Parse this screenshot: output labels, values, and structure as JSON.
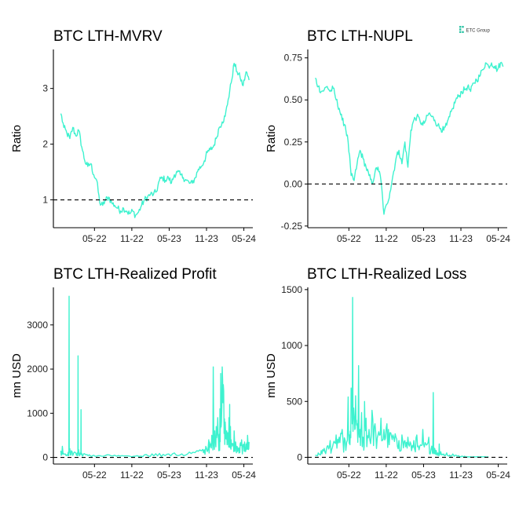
{
  "logo": {
    "text": "ETC Group",
    "color": "#2ec4a6"
  },
  "colors": {
    "line": "#3ef2cf",
    "reference": "#000000",
    "axis": "#000000"
  },
  "chart_data": [
    {
      "type": "line",
      "title": "BTC LTH-MVRV",
      "ylabel": "Ratio",
      "xlabel": "",
      "ylim": [
        0.5,
        3.7
      ],
      "yticks": [
        1,
        2,
        3
      ],
      "ytick_labels": [
        "1",
        "2",
        "3"
      ],
      "xlim": [
        2021.78,
        2024.45
      ],
      "xticks": [
        2022.33,
        2022.83,
        2023.33,
        2023.83,
        2024.33
      ],
      "xtick_labels": [
        "05-22",
        "11-22",
        "05-23",
        "11-23",
        "05-24"
      ],
      "reference_line": 1,
      "noise": 0.06,
      "x": [
        2021.88,
        2021.92,
        2021.96,
        2022.0,
        2022.04,
        2022.08,
        2022.12,
        2022.16,
        2022.2,
        2022.24,
        2022.28,
        2022.32,
        2022.36,
        2022.4,
        2022.44,
        2022.48,
        2022.52,
        2022.56,
        2022.6,
        2022.64,
        2022.68,
        2022.72,
        2022.76,
        2022.8,
        2022.84,
        2022.88,
        2022.92,
        2022.96,
        2023.0,
        2023.04,
        2023.08,
        2023.12,
        2023.16,
        2023.2,
        2023.24,
        2023.28,
        2023.32,
        2023.36,
        2023.4,
        2023.44,
        2023.48,
        2023.52,
        2023.56,
        2023.6,
        2023.64,
        2023.68,
        2023.72,
        2023.76,
        2023.8,
        2023.84,
        2023.88,
        2023.92,
        2023.96,
        2024.0,
        2024.04,
        2024.08,
        2024.12,
        2024.16,
        2024.2,
        2024.24,
        2024.28,
        2024.32,
        2024.36,
        2024.4
      ],
      "y": [
        2.55,
        2.3,
        2.2,
        2.1,
        2.3,
        2.15,
        2.25,
        1.95,
        1.7,
        1.6,
        1.65,
        1.45,
        1.35,
        0.95,
        0.9,
        1.0,
        1.05,
        0.95,
        0.9,
        0.85,
        0.8,
        0.85,
        0.8,
        0.75,
        0.8,
        0.72,
        0.78,
        0.9,
        1.0,
        1.05,
        1.1,
        1.1,
        1.15,
        1.35,
        1.4,
        1.35,
        1.4,
        1.3,
        1.45,
        1.5,
        1.45,
        1.4,
        1.35,
        1.3,
        1.3,
        1.4,
        1.55,
        1.6,
        1.7,
        1.85,
        1.9,
        1.95,
        2.1,
        2.3,
        2.4,
        2.5,
        2.8,
        3.1,
        3.45,
        3.3,
        3.2,
        3.05,
        3.3,
        3.15
      ]
    },
    {
      "type": "line",
      "title": "BTC LTH-NUPL",
      "ylabel": "Ratio",
      "xlabel": "",
      "ylim": [
        -0.26,
        0.8
      ],
      "yticks": [
        -0.25,
        0.0,
        0.25,
        0.5,
        0.75
      ],
      "ytick_labels": [
        "-0.25",
        "0.00",
        "0.25",
        "0.50",
        "0.75"
      ],
      "xlim": [
        2021.78,
        2024.45
      ],
      "xticks": [
        2022.33,
        2022.83,
        2023.33,
        2023.83,
        2024.33
      ],
      "xtick_labels": [
        "05-22",
        "11-22",
        "05-23",
        "11-23",
        "05-24"
      ],
      "reference_line": 0,
      "noise": 0.02,
      "x": [
        2021.88,
        2021.92,
        2021.96,
        2022.0,
        2022.04,
        2022.08,
        2022.12,
        2022.16,
        2022.2,
        2022.24,
        2022.28,
        2022.32,
        2022.36,
        2022.4,
        2022.44,
        2022.48,
        2022.52,
        2022.56,
        2022.6,
        2022.64,
        2022.68,
        2022.72,
        2022.76,
        2022.8,
        2022.84,
        2022.88,
        2022.92,
        2022.96,
        2023.0,
        2023.04,
        2023.08,
        2023.12,
        2023.16,
        2023.2,
        2023.24,
        2023.28,
        2023.32,
        2023.36,
        2023.4,
        2023.44,
        2023.48,
        2023.52,
        2023.56,
        2023.6,
        2023.64,
        2023.68,
        2023.72,
        2023.76,
        2023.8,
        2023.84,
        2023.88,
        2023.92,
        2023.96,
        2024.0,
        2024.04,
        2024.08,
        2024.12,
        2024.16,
        2024.2,
        2024.24,
        2024.28,
        2024.32,
        2024.36,
        2024.4
      ],
      "y": [
        0.63,
        0.58,
        0.55,
        0.56,
        0.58,
        0.55,
        0.57,
        0.5,
        0.45,
        0.38,
        0.35,
        0.25,
        0.05,
        0.02,
        0.12,
        0.2,
        0.15,
        0.1,
        0.05,
        0.0,
        0.07,
        0.1,
        0.02,
        -0.18,
        -0.12,
        -0.05,
        0.05,
        0.15,
        0.2,
        0.12,
        0.25,
        0.1,
        0.32,
        0.38,
        0.4,
        0.38,
        0.35,
        0.38,
        0.42,
        0.4,
        0.38,
        0.35,
        0.33,
        0.32,
        0.35,
        0.4,
        0.45,
        0.5,
        0.52,
        0.55,
        0.56,
        0.58,
        0.55,
        0.6,
        0.62,
        0.64,
        0.68,
        0.72,
        0.7,
        0.72,
        0.7,
        0.68,
        0.72,
        0.7
      ]
    },
    {
      "type": "line",
      "title": "BTC LTH-Realized Profit",
      "ylabel": "mn USD",
      "xlabel": "",
      "ylim": [
        -150,
        3850
      ],
      "yticks": [
        0,
        1000,
        2000,
        3000
      ],
      "ytick_labels": [
        "0",
        "1000",
        "2000",
        "3000"
      ],
      "xlim": [
        2021.78,
        2024.45
      ],
      "xticks": [
        2022.33,
        2022.83,
        2023.33,
        2023.83,
        2024.33
      ],
      "xtick_labels": [
        "05-22",
        "11-22",
        "05-23",
        "11-23",
        "05-24"
      ],
      "reference_line": 0,
      "noise": 0,
      "x": [
        2021.88,
        2021.9,
        2021.94,
        2021.98,
        2021.99,
        2022.0,
        2022.02,
        2022.06,
        2022.1,
        2022.11,
        2022.12,
        2022.14,
        2022.15,
        2022.16,
        2022.2,
        2022.26,
        2022.32,
        2022.4,
        2022.5,
        2022.6,
        2022.7,
        2022.8,
        2022.9,
        2023.0,
        2023.1,
        2023.2,
        2023.3,
        2023.4,
        2023.5,
        2023.6,
        2023.7,
        2023.78,
        2023.82,
        2023.86,
        2023.88,
        2023.9,
        2023.92,
        2023.94,
        2023.96,
        2023.98,
        2024.0,
        2024.01,
        2024.02,
        2024.04,
        2024.06,
        2024.08,
        2024.1,
        2024.12,
        2024.13,
        2024.14,
        2024.15,
        2024.16,
        2024.18,
        2024.2,
        2024.22,
        2024.24,
        2024.26,
        2024.28,
        2024.3,
        2024.32,
        2024.34,
        2024.36,
        2024.38,
        2024.4
      ],
      "y": [
        150,
        250,
        80,
        120,
        3650,
        200,
        150,
        120,
        100,
        2300,
        150,
        100,
        1080,
        90,
        80,
        60,
        50,
        40,
        60,
        50,
        40,
        30,
        40,
        60,
        80,
        90,
        70,
        100,
        80,
        120,
        150,
        180,
        250,
        400,
        300,
        500,
        2050,
        600,
        700,
        900,
        500,
        1100,
        1900,
        2050,
        1500,
        800,
        600,
        500,
        900,
        1200,
        700,
        400,
        300,
        600,
        350,
        250,
        200,
        300,
        400,
        250,
        350,
        300,
        500,
        350
      ]
    },
    {
      "type": "line",
      "title": "BTC LTH-Realized Loss",
      "ylabel": "mn USD",
      "xlabel": "",
      "ylim": [
        -60,
        1520
      ],
      "yticks": [
        0,
        500,
        1000,
        1500
      ],
      "ytick_labels": [
        "0",
        "500",
        "1000",
        "1500"
      ],
      "xlim": [
        2021.78,
        2024.45
      ],
      "xticks": [
        2022.33,
        2022.83,
        2023.33,
        2023.83,
        2024.33
      ],
      "xtick_labels": [
        "05-22",
        "11-22",
        "05-23",
        "11-23",
        "05-24"
      ],
      "reference_line": 0,
      "noise": 0,
      "x": [
        2021.88,
        2021.92,
        2021.96,
        2022.0,
        2022.04,
        2022.08,
        2022.12,
        2022.16,
        2022.2,
        2022.24,
        2022.28,
        2022.32,
        2022.34,
        2022.36,
        2022.38,
        2022.4,
        2022.42,
        2022.44,
        2022.46,
        2022.48,
        2022.5,
        2022.52,
        2022.54,
        2022.56,
        2022.6,
        2022.64,
        2022.68,
        2022.72,
        2022.76,
        2022.8,
        2022.84,
        2022.88,
        2022.92,
        2022.96,
        2023.0,
        2023.04,
        2023.08,
        2023.12,
        2023.16,
        2023.2,
        2023.24,
        2023.28,
        2023.32,
        2023.36,
        2023.4,
        2023.44,
        2023.46,
        2023.48,
        2023.5,
        2023.52,
        2023.54,
        2023.56,
        2023.6,
        2023.64,
        2023.68,
        2023.72,
        2023.76,
        2023.8,
        2023.84,
        2023.88,
        2023.92,
        2024.0,
        2024.1,
        2024.2
      ],
      "y": [
        20,
        40,
        60,
        80,
        100,
        150,
        120,
        200,
        180,
        250,
        150,
        540,
        200,
        620,
        1430,
        380,
        550,
        300,
        820,
        250,
        400,
        180,
        500,
        350,
        250,
        420,
        300,
        200,
        350,
        250,
        300,
        220,
        200,
        180,
        150,
        200,
        150,
        180,
        120,
        150,
        200,
        100,
        250,
        120,
        180,
        100,
        580,
        80,
        60,
        40,
        120,
        50,
        30,
        40,
        20,
        30,
        20,
        15,
        10,
        10,
        5,
        5,
        5,
        5
      ]
    }
  ]
}
